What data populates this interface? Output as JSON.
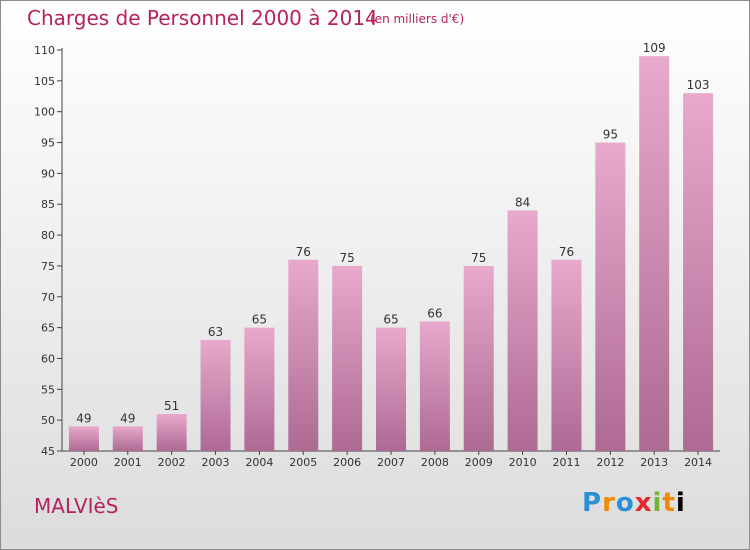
{
  "header": {
    "title": "Charges de Personnel 2000 à 2014",
    "unit": "(en milliers d'€)"
  },
  "footer": {
    "commune": "MALVIèS",
    "brand_letters": [
      "P",
      "r",
      "o",
      "x",
      "i",
      "t",
      "i"
    ]
  },
  "colors": {
    "title": "#b4235e",
    "bar_top": "#e8a9cd",
    "bar_bottom": "#ad6a93"
  },
  "chart_data": {
    "type": "bar",
    "title": "Charges de Personnel 2000 à 2014",
    "subtitle": "(en milliers d'€)",
    "categories": [
      "2000",
      "2001",
      "2002",
      "2003",
      "2004",
      "2005",
      "2006",
      "2007",
      "2008",
      "2009",
      "2010",
      "2011",
      "2012",
      "2013",
      "2014"
    ],
    "values": [
      49,
      49,
      51,
      63,
      65,
      76,
      75,
      65,
      66,
      75,
      84,
      76,
      95,
      109,
      103
    ],
    "ylim": [
      45,
      110
    ],
    "yticks": [
      45,
      50,
      55,
      60,
      65,
      70,
      75,
      80,
      85,
      90,
      95,
      100,
      105,
      110
    ],
    "xlabel": "",
    "ylabel": "",
    "grid": false
  }
}
